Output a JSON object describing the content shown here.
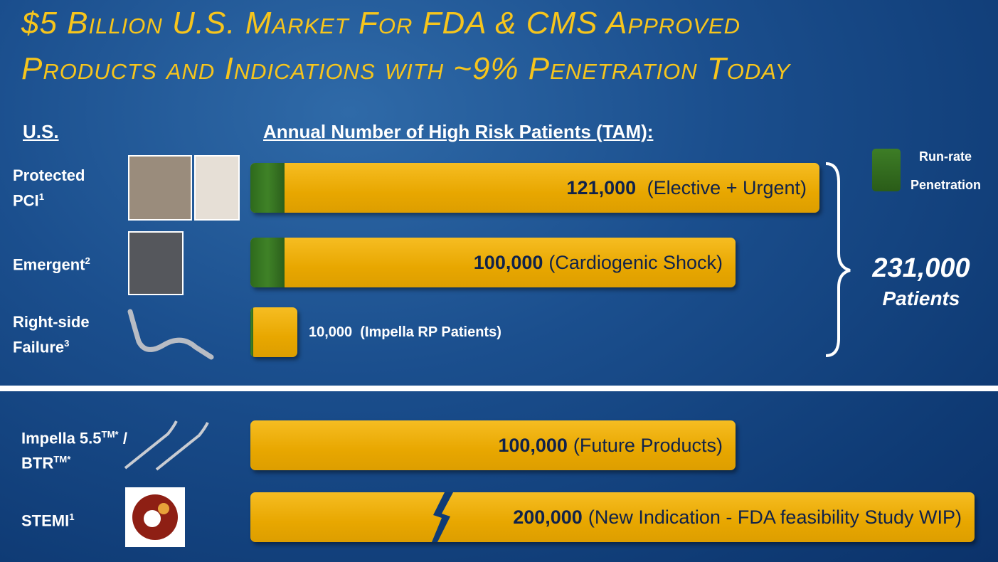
{
  "title": {
    "line1": "$5 Billion U.S. Market For FDA & CMS Approved",
    "line2": "Products and Indications with ~9% Penetration Today"
  },
  "headings": {
    "left": "U.S.",
    "right": "Annual Number of High Risk Patients (TAM):"
  },
  "legend": {
    "line1": "Run-rate",
    "line2": "Penetration"
  },
  "rows": [
    {
      "label": "Protected",
      "label2": "PCI",
      "sup": "1",
      "number": "121,000",
      "text": "(Elective + Urgent)"
    },
    {
      "label": "Emergent",
      "sup": "2",
      "number": "100,000",
      "text": "(Cardiogenic Shock)"
    },
    {
      "label": "Right-side",
      "label2": "Failure",
      "sup": "3",
      "number": "10,000",
      "text": "(Impella RP Patients)"
    }
  ],
  "total": {
    "number": "231,000",
    "unit": "Patients"
  },
  "future": [
    {
      "label": "Impella 5.5",
      "sup": "TM*",
      "label_end": " /",
      "label2": "BTR",
      "sup2": "TM*",
      "number": "100,000",
      "text": "(Future Products)"
    },
    {
      "label": "STEMI",
      "sup": "1",
      "number": "200,000",
      "text": "(New Indication - FDA feasibility Study WIP)"
    }
  ]
}
